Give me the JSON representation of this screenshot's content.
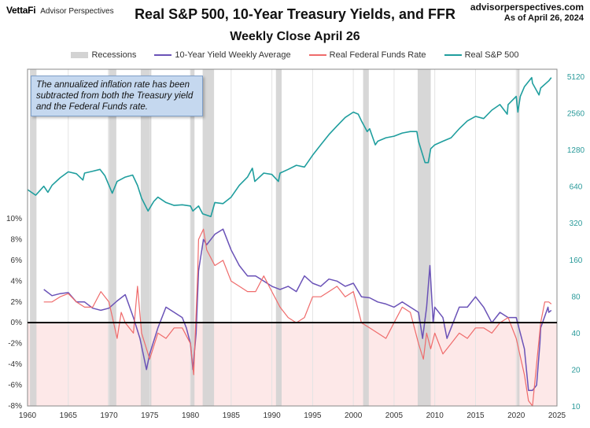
{
  "brand": {
    "logo": "VettaFi",
    "name": "Advisor Perspectives"
  },
  "source": {
    "site": "advisorperspectives.com",
    "date": "As of April 26, 2024"
  },
  "note": "The annualized inflation rate has been subtracted from both the Treasury yield and the Federal Funds rate.",
  "colors": {
    "recession": "#d3d3d3",
    "yield": "#6a52b7",
    "ffr": "#ef6b6b",
    "sp500": "#1f9e9e",
    "zero_line": "#000000",
    "negative_fill": "#fde8e8"
  },
  "chart_data": {
    "type": "line",
    "title": "Real S&P 500, 10-Year Treasury Yields, and FFR",
    "subtitle": "Weekly Close April 26",
    "xlim": [
      1960,
      2025
    ],
    "x_ticks": [
      "1960",
      "1965",
      "1970",
      "1975",
      "1980",
      "1985",
      "1990",
      "1995",
      "2000",
      "2005",
      "2010",
      "2015",
      "2020",
      "2025"
    ],
    "y_left": {
      "lim": [
        -8,
        10
      ],
      "ticks": [
        "-8%",
        "-6%",
        "-4%",
        "-2%",
        "0%",
        "2%",
        "4%",
        "6%",
        "8%",
        "10%"
      ]
    },
    "y_right": {
      "scale": "log",
      "lim": [
        10,
        5120
      ],
      "ticks": [
        "10",
        "20",
        "40",
        "80",
        "160",
        "320",
        "640",
        "1280",
        "2560",
        "5120"
      ]
    },
    "legend": {
      "placement": "top",
      "entries": [
        "Recessions",
        "10-Year Yield Weekly Average",
        "Real Federal Funds Rate",
        "Real S&P 500"
      ]
    },
    "recessions": [
      [
        1960.3,
        1961.1
      ],
      [
        1969.9,
        1970.9
      ],
      [
        1973.9,
        1975.2
      ],
      [
        1980.0,
        1980.5
      ],
      [
        1981.5,
        1982.9
      ],
      [
        1990.5,
        1991.2
      ],
      [
        2001.2,
        2001.9
      ],
      [
        2007.9,
        2009.5
      ],
      [
        2020.1,
        2020.4
      ]
    ],
    "series": [
      {
        "name": "Real S&P 500",
        "axis": "right",
        "x": [
          1960,
          1961,
          1962,
          1962.5,
          1963,
          1964,
          1965,
          1966,
          1966.8,
          1967,
          1968,
          1968.9,
          1969.5,
          1970.4,
          1971,
          1972,
          1972.9,
          1973.5,
          1974,
          1974.8,
          1975.5,
          1976,
          1977,
          1978,
          1979,
          1980,
          1980.3,
          1981,
          1981.5,
          1982.5,
          1983,
          1984,
          1985,
          1986,
          1987,
          1987.6,
          1987.9,
          1988,
          1989,
          1990,
          1990.8,
          1991,
          1992,
          1993,
          1994,
          1995,
          1996,
          1997,
          1998,
          1999,
          2000,
          2000.6,
          2001,
          2001.7,
          2002,
          2002.7,
          2003,
          2004,
          2005,
          2006,
          2007,
          2007.8,
          2008,
          2008.8,
          2009.2,
          2009.5,
          2010,
          2011,
          2012,
          2013,
          2014,
          2015,
          2016,
          2017,
          2018,
          2018.9,
          2019,
          2020,
          2020.2,
          2020.5,
          2021,
          2021.9,
          2022,
          2022.8,
          2023,
          2024,
          2024.3
        ],
        "values": [
          600,
          540,
          640,
          570,
          650,
          750,
          840,
          810,
          720,
          820,
          850,
          880,
          780,
          560,
          700,
          760,
          790,
          650,
          510,
          400,
          480,
          520,
          470,
          445,
          450,
          440,
          400,
          440,
          380,
          360,
          470,
          460,
          520,
          650,
          760,
          900,
          700,
          710,
          820,
          800,
          700,
          820,
          880,
          950,
          920,
          1150,
          1400,
          1700,
          2000,
          2350,
          2600,
          2500,
          2200,
          1800,
          1900,
          1400,
          1500,
          1600,
          1650,
          1750,
          1800,
          1800,
          1500,
          1000,
          1000,
          1300,
          1400,
          1500,
          1600,
          1900,
          2200,
          2400,
          2300,
          2700,
          3000,
          2500,
          3000,
          3500,
          2600,
          3500,
          4200,
          5000,
          4500,
          3600,
          4100,
          4700,
          5000
        ]
      },
      {
        "name": "10-Year Yield Weekly Average",
        "axis": "left",
        "x": [
          1962,
          1963,
          1964,
          1965,
          1966,
          1967,
          1968,
          1969,
          1970,
          1971,
          1972,
          1973,
          1973.8,
          1974.6,
          1975,
          1976,
          1977,
          1978,
          1979,
          1979.5,
          1980,
          1980.3,
          1980.7,
          1981,
          1981.6,
          1982,
          1983,
          1984,
          1985,
          1986,
          1987,
          1988,
          1989,
          1990,
          1991,
          1992,
          1993,
          1994,
          1995,
          1996,
          1997,
          1998,
          1999,
          2000,
          2001,
          2002,
          2003,
          2004,
          2005,
          2006,
          2007,
          2008,
          2008.5,
          2009,
          2009.4,
          2009.8,
          2010,
          2011,
          2011.5,
          2012,
          2013,
          2014,
          2015,
          2016,
          2017,
          2018,
          2019,
          2020,
          2021,
          2021.5,
          2022,
          2022.5,
          2022.9,
          2023,
          2023.9,
          2024,
          2024.3
        ],
        "values": [
          3.2,
          2.6,
          2.8,
          2.9,
          2.0,
          2.0,
          1.4,
          1.2,
          1.4,
          2.1,
          2.7,
          0.5,
          -1.5,
          -4.5,
          -3.0,
          -0.5,
          1.5,
          1.0,
          0.5,
          -0.5,
          -2.0,
          -4.5,
          -1.0,
          5.0,
          8.0,
          7.5,
          8.5,
          9.0,
          7.0,
          5.5,
          4.5,
          4.5,
          4.0,
          3.5,
          3.2,
          3.5,
          3.0,
          4.5,
          3.8,
          3.5,
          4.2,
          4.0,
          3.5,
          3.8,
          2.5,
          2.4,
          2.0,
          1.8,
          1.5,
          2.0,
          1.5,
          1.0,
          -1.5,
          1.5,
          5.5,
          0.0,
          1.5,
          0.5,
          -1.5,
          -0.5,
          1.5,
          1.5,
          2.5,
          1.5,
          0.0,
          1.0,
          0.5,
          0.5,
          -2.5,
          -6.5,
          -6.5,
          -6.0,
          -2.0,
          -0.5,
          1.5,
          1.0,
          1.2
        ]
      },
      {
        "name": "Real Federal Funds Rate",
        "axis": "left",
        "x": [
          1962,
          1963,
          1964,
          1965,
          1966,
          1967,
          1968,
          1969,
          1970,
          1971,
          1971.5,
          1972,
          1973,
          1973.5,
          1974,
          1975,
          1976,
          1977,
          1978,
          1979,
          1980,
          1980.4,
          1980.9,
          1981,
          1981.6,
          1982,
          1983,
          1984,
          1985,
          1986,
          1987,
          1988,
          1989,
          1990,
          1991,
          1992,
          1993,
          1994,
          1995,
          1996,
          1997,
          1998,
          1999,
          2000,
          2001,
          2002,
          2003,
          2004,
          2005,
          2006,
          2007,
          2008,
          2008.6,
          2009,
          2009.5,
          2010,
          2011,
          2012,
          2013,
          2014,
          2015,
          2016,
          2017,
          2018,
          2019,
          2020,
          2021,
          2021.5,
          2022,
          2022.5,
          2023,
          2023.5,
          2024,
          2024.3
        ],
        "values": [
          2.0,
          2.0,
          2.5,
          2.8,
          2.0,
          1.5,
          1.5,
          3.0,
          2.0,
          -1.5,
          1.0,
          0.0,
          -1.0,
          3.5,
          -1.0,
          -3.5,
          -1.0,
          -1.5,
          -0.5,
          -0.5,
          -2.0,
          -5.0,
          5.0,
          8.0,
          9.0,
          7.0,
          5.5,
          6.0,
          4.0,
          3.5,
          3.0,
          3.0,
          4.5,
          3.0,
          1.5,
          0.5,
          0.0,
          0.5,
          2.5,
          2.5,
          3.0,
          3.5,
          2.5,
          3.0,
          0.0,
          -0.5,
          -1.0,
          -1.5,
          0.0,
          1.5,
          1.0,
          -2.0,
          -3.5,
          -1.0,
          -2.5,
          -1.0,
          -3.0,
          -2.0,
          -1.0,
          -1.5,
          -0.5,
          -0.5,
          -1.0,
          0.0,
          0.5,
          -1.5,
          -5.0,
          -7.5,
          -8.0,
          -4.0,
          0.0,
          2.0,
          2.0,
          1.8
        ]
      }
    ]
  }
}
